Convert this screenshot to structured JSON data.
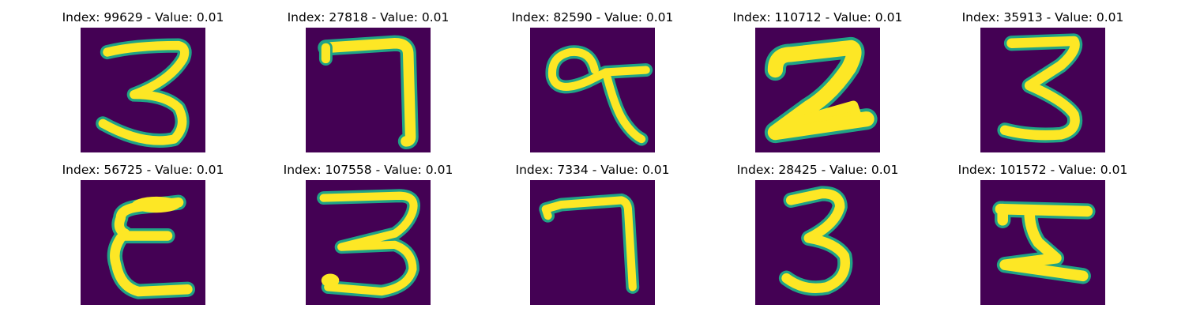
{
  "colors": {
    "background": "#440154",
    "stroke_core": "#fde725",
    "stroke_edge": "#20a386",
    "stroke_mid": "#5ec962"
  },
  "panels": [
    {
      "title": "Index: 99629 - Value: 0.01",
      "digit": "3"
    },
    {
      "title": "Index: 27818 - Value: 0.01",
      "digit": "7"
    },
    {
      "title": "Index: 82590 - Value: 0.01",
      "digit": "9"
    },
    {
      "title": "Index: 110712 - Value: 0.01",
      "digit": "2"
    },
    {
      "title": "Index: 35913 - Value: 0.01",
      "digit": "3"
    },
    {
      "title": "Index: 56725 - Value: 0.01",
      "digit": "E"
    },
    {
      "title": "Index: 107558 - Value: 0.01",
      "digit": "3"
    },
    {
      "title": "Index: 7334 - Value: 0.01",
      "digit": "7"
    },
    {
      "title": "Index: 28425 - Value: 0.01",
      "digit": "3"
    },
    {
      "title": "Index: 101572 - Value: 0.01",
      "digit": "5"
    }
  ]
}
